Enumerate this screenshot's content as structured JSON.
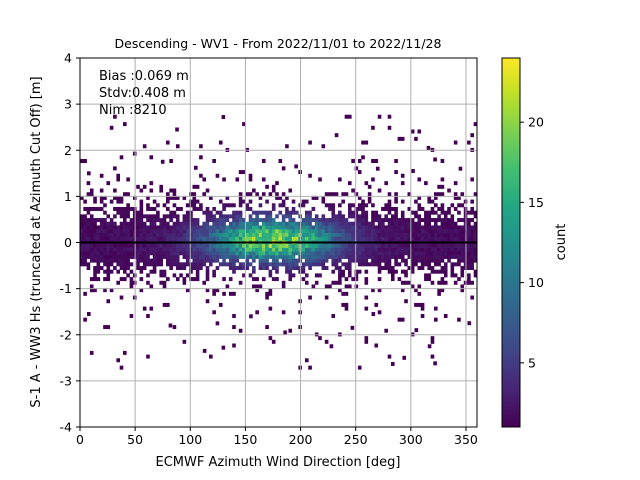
{
  "chart_data": {
    "type": "heatmap",
    "title": "Descending - WV1 - From 2022/11/01 to 2022/11/28",
    "xlabel": "ECMWF Azimuth Wind Direction [deg]",
    "ylabel": "S-1 A - WW3 Hs (truncated at Azimuth Cut Off) [m]",
    "xlim": [
      0,
      360
    ],
    "ylim": [
      -4,
      4
    ],
    "xticks": [
      0,
      50,
      100,
      150,
      200,
      250,
      300,
      350
    ],
    "yticks": [
      -4,
      -3,
      -2,
      -1,
      0,
      1,
      2,
      3,
      4
    ],
    "grid": true,
    "stats": [
      "Bias :0.069 m",
      "Stdv:0.408 m",
      "Nim :8210"
    ],
    "colorbar": {
      "label": "count",
      "range": [
        1,
        24
      ],
      "ticks": [
        5,
        10,
        15,
        20
      ],
      "colormap": "viridis"
    },
    "zero_line": 0,
    "bin_width_x": 3,
    "bin_width_y": 0.08,
    "density": {
      "hotspot_center_x": 175,
      "hotspot_center_y": 0.05,
      "core_spread_y": 0.45,
      "peak_count": 24,
      "max_abs_y": 2.75
    },
    "outliers": [
      {
        "x": 88,
        "y": 2.45
      },
      {
        "x": 130,
        "y": 2.72
      },
      {
        "x": 316,
        "y": 2.05
      },
      {
        "x": 322,
        "y": 1.8
      },
      {
        "x": 302,
        "y": 1.55
      },
      {
        "x": 270,
        "y": 1.6
      },
      {
        "x": 196,
        "y": 1.65
      },
      {
        "x": 75,
        "y": 1.75
      },
      {
        "x": 345,
        "y": 1.6
      },
      {
        "x": 8,
        "y": 1.5
      },
      {
        "x": 105,
        "y": 1.62
      },
      {
        "x": 113,
        "y": -2.35
      },
      {
        "x": 130,
        "y": -2.28
      },
      {
        "x": 228,
        "y": -2.25
      },
      {
        "x": 317,
        "y": -2.25
      },
      {
        "x": 322,
        "y": -2.62
      },
      {
        "x": 294,
        "y": -2.5
      },
      {
        "x": 186,
        "y": -1.95
      },
      {
        "x": 82,
        "y": -1.8
      },
      {
        "x": 8,
        "y": -1.55
      },
      {
        "x": 247,
        "y": -1.85
      },
      {
        "x": 305,
        "y": -1.9
      },
      {
        "x": 353,
        "y": -1.75
      },
      {
        "x": 266,
        "y": -1.55
      },
      {
        "x": 155,
        "y": -1.6
      }
    ]
  }
}
